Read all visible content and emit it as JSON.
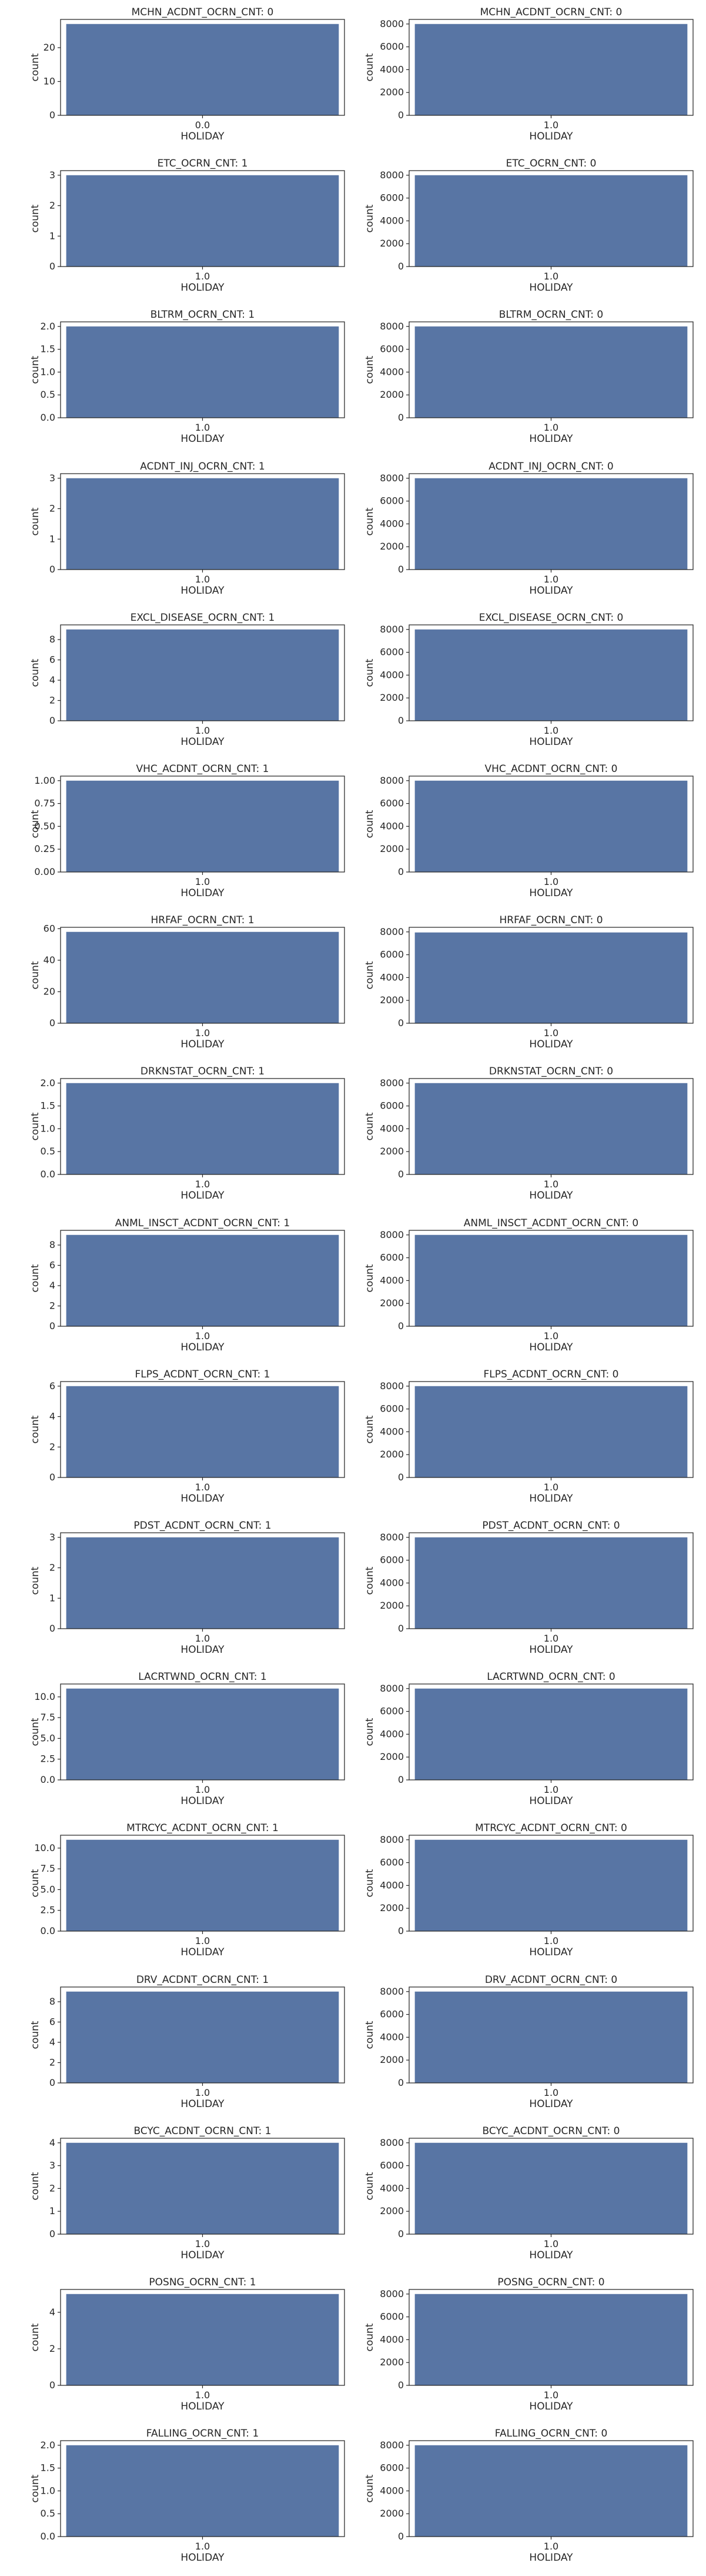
{
  "figure": {
    "bar_color": "#5875a4",
    "axes_edge_color": "#262626",
    "text_color": "#262626",
    "background": "#ffffff"
  },
  "chart_data": [
    {
      "type": "bar",
      "title": "MCHN_ACDNT_OCRN_CNT: 0",
      "xlabel": "HOLIDAY",
      "ylabel": "count",
      "categories": [
        "0.0"
      ],
      "values": [
        27
      ],
      "ylim": [
        0,
        28.35
      ],
      "yticks": [
        0,
        10,
        20
      ],
      "ytick_labels": [
        "0",
        "10",
        "20"
      ]
    },
    {
      "type": "bar",
      "title": "MCHN_ACDNT_OCRN_CNT: 0",
      "xlabel": "HOLIDAY",
      "ylabel": "count",
      "categories": [
        "1.0"
      ],
      "values": [
        8000
      ],
      "ylim": [
        0,
        8400
      ],
      "yticks": [
        0,
        2000,
        4000,
        6000,
        8000
      ],
      "ytick_labels": [
        "0",
        "2000",
        "4000",
        "6000",
        "8000"
      ]
    },
    {
      "type": "bar",
      "title": "ETC_OCRN_CNT: 1",
      "xlabel": "HOLIDAY",
      "ylabel": "count",
      "categories": [
        "1.0"
      ],
      "values": [
        3
      ],
      "ylim": [
        0,
        3.15
      ],
      "yticks": [
        0,
        1,
        2,
        3
      ],
      "ytick_labels": [
        "0",
        "1",
        "2",
        "3"
      ]
    },
    {
      "type": "bar",
      "title": "ETC_OCRN_CNT: 0",
      "xlabel": "HOLIDAY",
      "ylabel": "count",
      "categories": [
        "1.0"
      ],
      "values": [
        8000
      ],
      "ylim": [
        0,
        8400
      ],
      "yticks": [
        0,
        2000,
        4000,
        6000,
        8000
      ],
      "ytick_labels": [
        "0",
        "2000",
        "4000",
        "6000",
        "8000"
      ]
    },
    {
      "type": "bar",
      "title": "BLTRM_OCRN_CNT: 1",
      "xlabel": "HOLIDAY",
      "ylabel": "count",
      "categories": [
        "1.0"
      ],
      "values": [
        2
      ],
      "ylim": [
        0,
        2.1
      ],
      "yticks": [
        0,
        0.5,
        1,
        1.5,
        2
      ],
      "ytick_labels": [
        "0.0",
        "0.5",
        "1.0",
        "1.5",
        "2.0"
      ]
    },
    {
      "type": "bar",
      "title": "BLTRM_OCRN_CNT: 0",
      "xlabel": "HOLIDAY",
      "ylabel": "count",
      "categories": [
        "1.0"
      ],
      "values": [
        8000
      ],
      "ylim": [
        0,
        8400
      ],
      "yticks": [
        0,
        2000,
        4000,
        6000,
        8000
      ],
      "ytick_labels": [
        "0",
        "2000",
        "4000",
        "6000",
        "8000"
      ]
    },
    {
      "type": "bar",
      "title": "ACDNT_INJ_OCRN_CNT: 1",
      "xlabel": "HOLIDAY",
      "ylabel": "count",
      "categories": [
        "1.0"
      ],
      "values": [
        3
      ],
      "ylim": [
        0,
        3.15
      ],
      "yticks": [
        0,
        1,
        2,
        3
      ],
      "ytick_labels": [
        "0",
        "1",
        "2",
        "3"
      ]
    },
    {
      "type": "bar",
      "title": "ACDNT_INJ_OCRN_CNT: 0",
      "xlabel": "HOLIDAY",
      "ylabel": "count",
      "categories": [
        "1.0"
      ],
      "values": [
        8000
      ],
      "ylim": [
        0,
        8400
      ],
      "yticks": [
        0,
        2000,
        4000,
        6000,
        8000
      ],
      "ytick_labels": [
        "0",
        "2000",
        "4000",
        "6000",
        "8000"
      ]
    },
    {
      "type": "bar",
      "title": "EXCL_DISEASE_OCRN_CNT: 1",
      "xlabel": "HOLIDAY",
      "ylabel": "count",
      "categories": [
        "1.0"
      ],
      "values": [
        9
      ],
      "ylim": [
        0,
        9.45
      ],
      "yticks": [
        0,
        2,
        4,
        6,
        8
      ],
      "ytick_labels": [
        "0",
        "2",
        "4",
        "6",
        "8"
      ]
    },
    {
      "type": "bar",
      "title": "EXCL_DISEASE_OCRN_CNT: 0",
      "xlabel": "HOLIDAY",
      "ylabel": "count",
      "categories": [
        "1.0"
      ],
      "values": [
        8000
      ],
      "ylim": [
        0,
        8400
      ],
      "yticks": [
        0,
        2000,
        4000,
        6000,
        8000
      ],
      "ytick_labels": [
        "0",
        "2000",
        "4000",
        "6000",
        "8000"
      ]
    },
    {
      "type": "bar",
      "title": "VHC_ACDNT_OCRN_CNT: 1",
      "xlabel": "HOLIDAY",
      "ylabel": "count",
      "categories": [
        "1.0"
      ],
      "values": [
        1
      ],
      "ylim": [
        0,
        1.05
      ],
      "yticks": [
        0,
        0.25,
        0.5,
        0.75,
        1
      ],
      "ytick_labels": [
        "0.00",
        "0.25",
        "0.50",
        "0.75",
        "1.00"
      ]
    },
    {
      "type": "bar",
      "title": "VHC_ACDNT_OCRN_CNT: 0",
      "xlabel": "HOLIDAY",
      "ylabel": "count",
      "categories": [
        "1.0"
      ],
      "values": [
        8000
      ],
      "ylim": [
        0,
        8400
      ],
      "yticks": [
        0,
        2000,
        4000,
        6000,
        8000
      ],
      "ytick_labels": [
        "0",
        "2000",
        "4000",
        "6000",
        "8000"
      ]
    },
    {
      "type": "bar",
      "title": "HRFAF_OCRN_CNT: 1",
      "xlabel": "HOLIDAY",
      "ylabel": "count",
      "categories": [
        "1.0"
      ],
      "values": [
        58
      ],
      "ylim": [
        0,
        60.9
      ],
      "yticks": [
        0,
        20,
        40,
        60
      ],
      "ytick_labels": [
        "0",
        "20",
        "40",
        "60"
      ]
    },
    {
      "type": "bar",
      "title": "HRFAF_OCRN_CNT: 0",
      "xlabel": "HOLIDAY",
      "ylabel": "count",
      "categories": [
        "1.0"
      ],
      "values": [
        7950
      ],
      "ylim": [
        0,
        8400
      ],
      "yticks": [
        0,
        2000,
        4000,
        6000,
        8000
      ],
      "ytick_labels": [
        "0",
        "2000",
        "4000",
        "6000",
        "8000"
      ]
    },
    {
      "type": "bar",
      "title": "DRKNSTAT_OCRN_CNT: 1",
      "xlabel": "HOLIDAY",
      "ylabel": "count",
      "categories": [
        "1.0"
      ],
      "values": [
        2
      ],
      "ylim": [
        0,
        2.1
      ],
      "yticks": [
        0,
        0.5,
        1,
        1.5,
        2
      ],
      "ytick_labels": [
        "0.0",
        "0.5",
        "1.0",
        "1.5",
        "2.0"
      ]
    },
    {
      "type": "bar",
      "title": "DRKNSTAT_OCRN_CNT: 0",
      "xlabel": "HOLIDAY",
      "ylabel": "count",
      "categories": [
        "1.0"
      ],
      "values": [
        8000
      ],
      "ylim": [
        0,
        8400
      ],
      "yticks": [
        0,
        2000,
        4000,
        6000,
        8000
      ],
      "ytick_labels": [
        "0",
        "2000",
        "4000",
        "6000",
        "8000"
      ]
    },
    {
      "type": "bar",
      "title": "ANML_INSCT_ACDNT_OCRN_CNT: 1",
      "xlabel": "HOLIDAY",
      "ylabel": "count",
      "categories": [
        "1.0"
      ],
      "values": [
        9
      ],
      "ylim": [
        0,
        9.45
      ],
      "yticks": [
        0,
        2,
        4,
        6,
        8
      ],
      "ytick_labels": [
        "0",
        "2",
        "4",
        "6",
        "8"
      ]
    },
    {
      "type": "bar",
      "title": "ANML_INSCT_ACDNT_OCRN_CNT: 0",
      "xlabel": "HOLIDAY",
      "ylabel": "count",
      "categories": [
        "1.0"
      ],
      "values": [
        8000
      ],
      "ylim": [
        0,
        8400
      ],
      "yticks": [
        0,
        2000,
        4000,
        6000,
        8000
      ],
      "ytick_labels": [
        "0",
        "2000",
        "4000",
        "6000",
        "8000"
      ]
    },
    {
      "type": "bar",
      "title": "FLPS_ACDNT_OCRN_CNT: 1",
      "xlabel": "HOLIDAY",
      "ylabel": "count",
      "categories": [
        "1.0"
      ],
      "values": [
        6
      ],
      "ylim": [
        0,
        6.3
      ],
      "yticks": [
        0,
        2,
        4,
        6
      ],
      "ytick_labels": [
        "0",
        "2",
        "4",
        "6"
      ]
    },
    {
      "type": "bar",
      "title": "FLPS_ACDNT_OCRN_CNT: 0",
      "xlabel": "HOLIDAY",
      "ylabel": "count",
      "categories": [
        "1.0"
      ],
      "values": [
        8000
      ],
      "ylim": [
        0,
        8400
      ],
      "yticks": [
        0,
        2000,
        4000,
        6000,
        8000
      ],
      "ytick_labels": [
        "0",
        "2000",
        "4000",
        "6000",
        "8000"
      ]
    },
    {
      "type": "bar",
      "title": "PDST_ACDNT_OCRN_CNT: 1",
      "xlabel": "HOLIDAY",
      "ylabel": "count",
      "categories": [
        "1.0"
      ],
      "values": [
        3
      ],
      "ylim": [
        0,
        3.15
      ],
      "yticks": [
        0,
        1,
        2,
        3
      ],
      "ytick_labels": [
        "0",
        "1",
        "2",
        "3"
      ]
    },
    {
      "type": "bar",
      "title": "PDST_ACDNT_OCRN_CNT: 0",
      "xlabel": "HOLIDAY",
      "ylabel": "count",
      "categories": [
        "1.0"
      ],
      "values": [
        8000
      ],
      "ylim": [
        0,
        8400
      ],
      "yticks": [
        0,
        2000,
        4000,
        6000,
        8000
      ],
      "ytick_labels": [
        "0",
        "2000",
        "4000",
        "6000",
        "8000"
      ]
    },
    {
      "type": "bar",
      "title": "LACRTWND_OCRN_CNT: 1",
      "xlabel": "HOLIDAY",
      "ylabel": "count",
      "categories": [
        "1.0"
      ],
      "values": [
        11
      ],
      "ylim": [
        0,
        11.55
      ],
      "yticks": [
        0,
        2.5,
        5,
        7.5,
        10
      ],
      "ytick_labels": [
        "0.0",
        "2.5",
        "5.0",
        "7.5",
        "10.0"
      ]
    },
    {
      "type": "bar",
      "title": "LACRTWND_OCRN_CNT: 0",
      "xlabel": "HOLIDAY",
      "ylabel": "count",
      "categories": [
        "1.0"
      ],
      "values": [
        8000
      ],
      "ylim": [
        0,
        8400
      ],
      "yticks": [
        0,
        2000,
        4000,
        6000,
        8000
      ],
      "ytick_labels": [
        "0",
        "2000",
        "4000",
        "6000",
        "8000"
      ]
    },
    {
      "type": "bar",
      "title": "MTRCYC_ACDNT_OCRN_CNT: 1",
      "xlabel": "HOLIDAY",
      "ylabel": "count",
      "categories": [
        "1.0"
      ],
      "values": [
        11
      ],
      "ylim": [
        0,
        11.55
      ],
      "yticks": [
        0,
        2.5,
        5,
        7.5,
        10
      ],
      "ytick_labels": [
        "0.0",
        "2.5",
        "5.0",
        "7.5",
        "10.0"
      ]
    },
    {
      "type": "bar",
      "title": "MTRCYC_ACDNT_OCRN_CNT: 0",
      "xlabel": "HOLIDAY",
      "ylabel": "count",
      "categories": [
        "1.0"
      ],
      "values": [
        8000
      ],
      "ylim": [
        0,
        8400
      ],
      "yticks": [
        0,
        2000,
        4000,
        6000,
        8000
      ],
      "ytick_labels": [
        "0",
        "2000",
        "4000",
        "6000",
        "8000"
      ]
    },
    {
      "type": "bar",
      "title": "DRV_ACDNT_OCRN_CNT: 1",
      "xlabel": "HOLIDAY",
      "ylabel": "count",
      "categories": [
        "1.0"
      ],
      "values": [
        9
      ],
      "ylim": [
        0,
        9.45
      ],
      "yticks": [
        0,
        2,
        4,
        6,
        8
      ],
      "ytick_labels": [
        "0",
        "2",
        "4",
        "6",
        "8"
      ]
    },
    {
      "type": "bar",
      "title": "DRV_ACDNT_OCRN_CNT: 0",
      "xlabel": "HOLIDAY",
      "ylabel": "count",
      "categories": [
        "1.0"
      ],
      "values": [
        8000
      ],
      "ylim": [
        0,
        8400
      ],
      "yticks": [
        0,
        2000,
        4000,
        6000,
        8000
      ],
      "ytick_labels": [
        "0",
        "2000",
        "4000",
        "6000",
        "8000"
      ]
    },
    {
      "type": "bar",
      "title": "BCYC_ACDNT_OCRN_CNT: 1",
      "xlabel": "HOLIDAY",
      "ylabel": "count",
      "categories": [
        "1.0"
      ],
      "values": [
        4
      ],
      "ylim": [
        0,
        4.2
      ],
      "yticks": [
        0,
        1,
        2,
        3,
        4
      ],
      "ytick_labels": [
        "0",
        "1",
        "2",
        "3",
        "4"
      ]
    },
    {
      "type": "bar",
      "title": "BCYC_ACDNT_OCRN_CNT: 0",
      "xlabel": "HOLIDAY",
      "ylabel": "count",
      "categories": [
        "1.0"
      ],
      "values": [
        8000
      ],
      "ylim": [
        0,
        8400
      ],
      "yticks": [
        0,
        2000,
        4000,
        6000,
        8000
      ],
      "ytick_labels": [
        "0",
        "2000",
        "4000",
        "6000",
        "8000"
      ]
    },
    {
      "type": "bar",
      "title": "POSNG_OCRN_CNT: 1",
      "xlabel": "HOLIDAY",
      "ylabel": "count",
      "categories": [
        "1.0"
      ],
      "values": [
        5
      ],
      "ylim": [
        0,
        5.25
      ],
      "yticks": [
        0,
        2,
        4
      ],
      "ytick_labels": [
        "0",
        "2",
        "4"
      ]
    },
    {
      "type": "bar",
      "title": "POSNG_OCRN_CNT: 0",
      "xlabel": "HOLIDAY",
      "ylabel": "count",
      "categories": [
        "1.0"
      ],
      "values": [
        8000
      ],
      "ylim": [
        0,
        8400
      ],
      "yticks": [
        0,
        2000,
        4000,
        6000,
        8000
      ],
      "ytick_labels": [
        "0",
        "2000",
        "4000",
        "6000",
        "8000"
      ]
    },
    {
      "type": "bar",
      "title": "FALLING_OCRN_CNT: 1",
      "xlabel": "HOLIDAY",
      "ylabel": "count",
      "categories": [
        "1.0"
      ],
      "values": [
        2
      ],
      "ylim": [
        0,
        2.1
      ],
      "yticks": [
        0,
        0.5,
        1,
        1.5,
        2
      ],
      "ytick_labels": [
        "0.0",
        "0.5",
        "1.0",
        "1.5",
        "2.0"
      ]
    },
    {
      "type": "bar",
      "title": "FALLING_OCRN_CNT: 0",
      "xlabel": "HOLIDAY",
      "ylabel": "count",
      "categories": [
        "1.0"
      ],
      "values": [
        8000
      ],
      "ylim": [
        0,
        8400
      ],
      "yticks": [
        0,
        2000,
        4000,
        6000,
        8000
      ],
      "ytick_labels": [
        "0",
        "2000",
        "4000",
        "6000",
        "8000"
      ]
    }
  ]
}
